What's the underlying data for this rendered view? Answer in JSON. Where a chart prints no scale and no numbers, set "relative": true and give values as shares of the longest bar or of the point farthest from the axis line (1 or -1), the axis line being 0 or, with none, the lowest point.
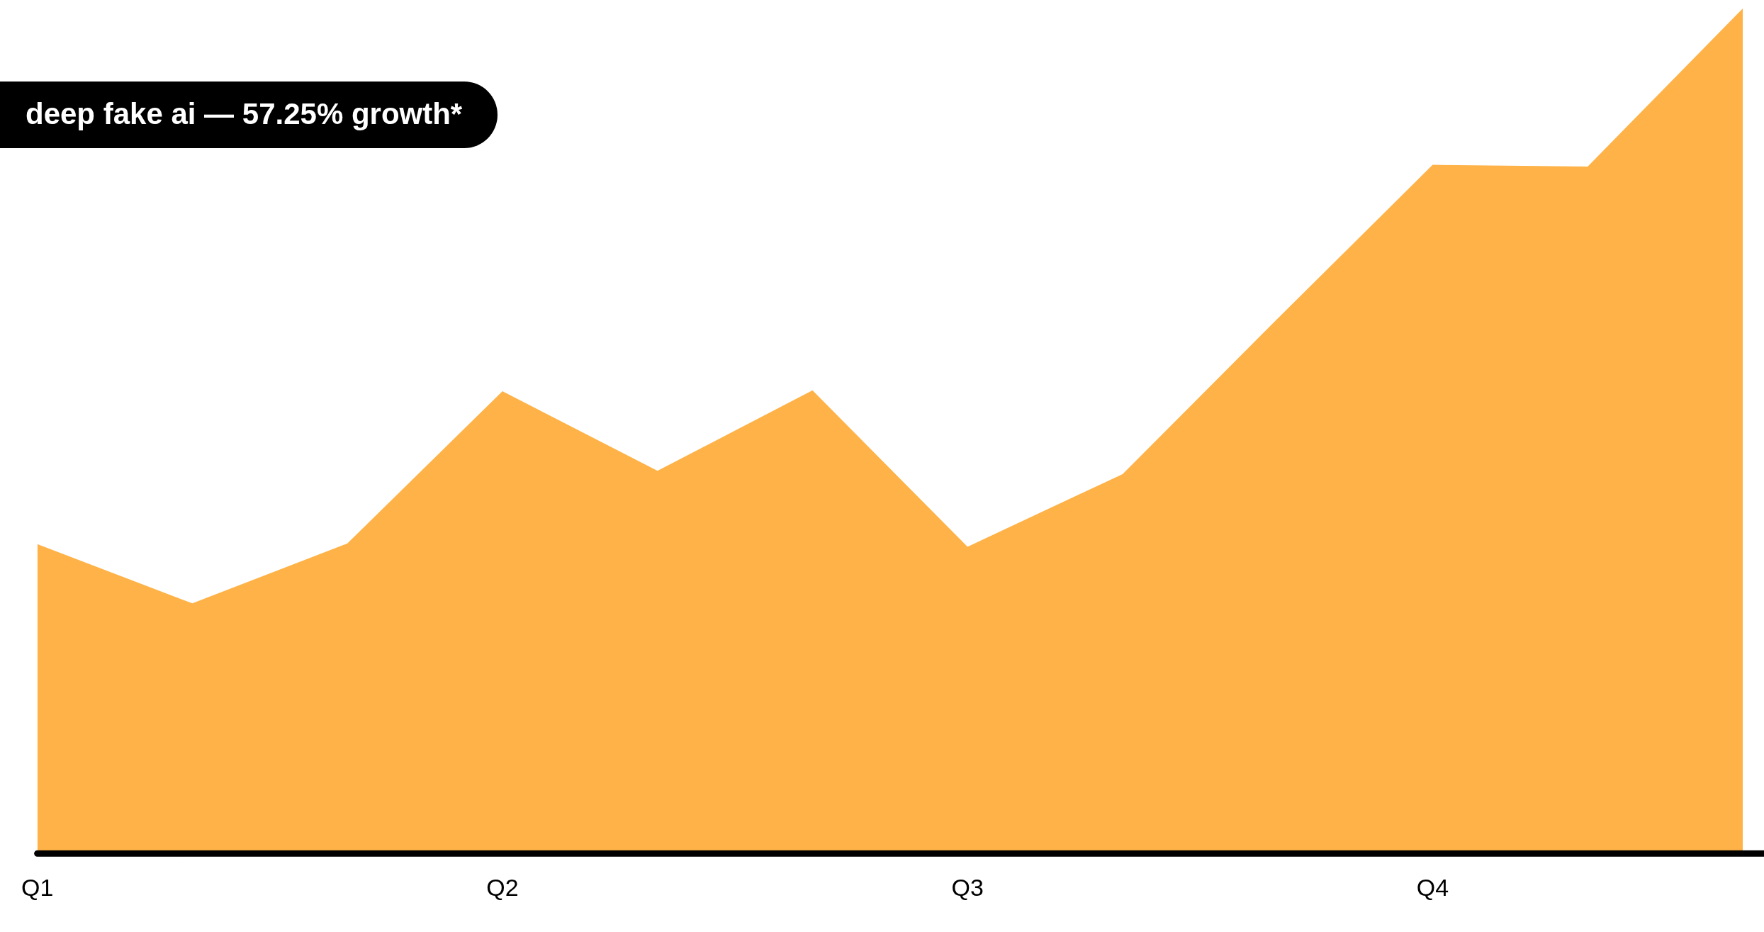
{
  "chart_data": {
    "type": "area",
    "relative": true,
    "categories": [
      "Q1",
      null,
      null,
      "Q2",
      null,
      null,
      "Q3",
      null,
      null,
      "Q4",
      null,
      null
    ],
    "series": [
      {
        "color": "#feb247",
        "values": [
          0.366,
          0.296,
          0.367,
          0.547,
          0.453,
          0.548,
          0.363,
          0.449,
          0.633,
          0.815,
          0.813,
          1
        ]
      }
    ],
    "annotations": [
      "deep fake ai — 57.25% growth*"
    ]
  }
}
